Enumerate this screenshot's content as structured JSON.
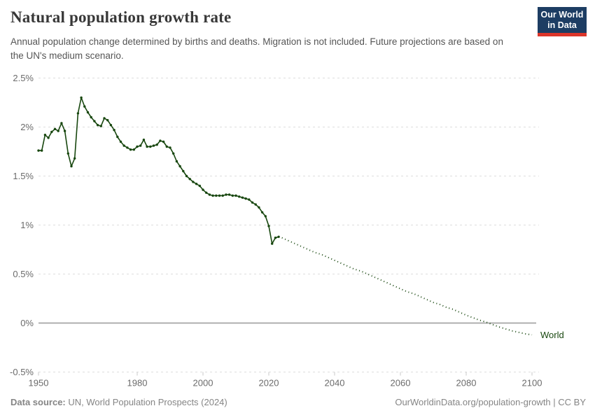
{
  "header": {
    "title": "Natural population growth rate",
    "subtitle": "Annual population change determined by births and deaths. Migration is not included. Future projections are based on the UN's medium scenario.",
    "logo": {
      "line1": "Our World",
      "line2": "in Data",
      "bg_color": "#1d3d63",
      "bar_color": "#dc352a"
    }
  },
  "footer": {
    "source_label": "Data source:",
    "source_text": "UN, World Population Prospects (2024)",
    "link": "OurWorldinData.org/population-growth | CC BY"
  },
  "chart_data": {
    "type": "line",
    "title": "Natural population growth rate",
    "xlabel": "",
    "ylabel": "",
    "unit": "%",
    "xlim": [
      1950,
      2105
    ],
    "ylim": [
      -0.5,
      2.5
    ],
    "grid": "horizontal dashed, solid line at 0%",
    "legend_position": "end-of-line label",
    "line_color": "#18470f",
    "grid_color": "#dcdcdc",
    "zero_line_color": "#a5a5a5",
    "axis_text_color": "#6b6b6b",
    "x_ticks": [
      1950,
      1980,
      2000,
      2020,
      2040,
      2060,
      2080,
      2100
    ],
    "y_ticks": [
      {
        "value": 2.5,
        "label": "2.5%"
      },
      {
        "value": 2.0,
        "label": "2%"
      },
      {
        "value": 1.5,
        "label": "1.5%"
      },
      {
        "value": 1.0,
        "label": "1%"
      },
      {
        "value": 0.5,
        "label": "0.5%"
      },
      {
        "value": 0.0,
        "label": "0%"
      },
      {
        "value": -0.5,
        "label": "-0.5%"
      }
    ],
    "series": [
      {
        "name": "World",
        "observed_style": "solid line with point markers",
        "projected_style": "dotted",
        "observed_start_year": 1950,
        "observed_values": [
          1.76,
          1.76,
          1.92,
          1.89,
          1.95,
          1.98,
          1.96,
          2.04,
          1.96,
          1.73,
          1.6,
          1.68,
          2.14,
          2.3,
          2.21,
          2.15,
          2.1,
          2.06,
          2.02,
          2.01,
          2.09,
          2.07,
          2.02,
          1.97,
          1.9,
          1.85,
          1.81,
          1.79,
          1.77,
          1.77,
          1.8,
          1.81,
          1.87,
          1.8,
          1.8,
          1.81,
          1.82,
          1.86,
          1.85,
          1.8,
          1.79,
          1.73,
          1.65,
          1.6,
          1.55,
          1.5,
          1.47,
          1.44,
          1.42,
          1.4,
          1.36,
          1.33,
          1.31,
          1.3,
          1.3,
          1.3,
          1.3,
          1.31,
          1.31,
          1.3,
          1.3,
          1.29,
          1.28,
          1.27,
          1.26,
          1.23,
          1.21,
          1.18,
          1.13,
          1.09,
          0.99,
          0.81,
          0.87,
          0.88
        ],
        "projected_points": [
          [
            2024,
            0.87
          ],
          [
            2026,
            0.84
          ],
          [
            2028,
            0.81
          ],
          [
            2030,
            0.78
          ],
          [
            2032,
            0.75
          ],
          [
            2034,
            0.72
          ],
          [
            2036,
            0.7
          ],
          [
            2038,
            0.67
          ],
          [
            2040,
            0.64
          ],
          [
            2042,
            0.61
          ],
          [
            2044,
            0.58
          ],
          [
            2046,
            0.55
          ],
          [
            2048,
            0.53
          ],
          [
            2050,
            0.5
          ],
          [
            2052,
            0.47
          ],
          [
            2054,
            0.44
          ],
          [
            2056,
            0.41
          ],
          [
            2058,
            0.38
          ],
          [
            2060,
            0.35
          ],
          [
            2062,
            0.32
          ],
          [
            2064,
            0.3
          ],
          [
            2066,
            0.27
          ],
          [
            2068,
            0.24
          ],
          [
            2070,
            0.21
          ],
          [
            2072,
            0.19
          ],
          [
            2074,
            0.16
          ],
          [
            2076,
            0.14
          ],
          [
            2078,
            0.11
          ],
          [
            2080,
            0.08
          ],
          [
            2082,
            0.055
          ],
          [
            2084,
            0.03
          ],
          [
            2086,
            0.01
          ],
          [
            2088,
            -0.015
          ],
          [
            2090,
            -0.04
          ],
          [
            2092,
            -0.06
          ],
          [
            2094,
            -0.08
          ],
          [
            2096,
            -0.095
          ],
          [
            2098,
            -0.11
          ],
          [
            2100,
            -0.12
          ]
        ]
      }
    ]
  }
}
